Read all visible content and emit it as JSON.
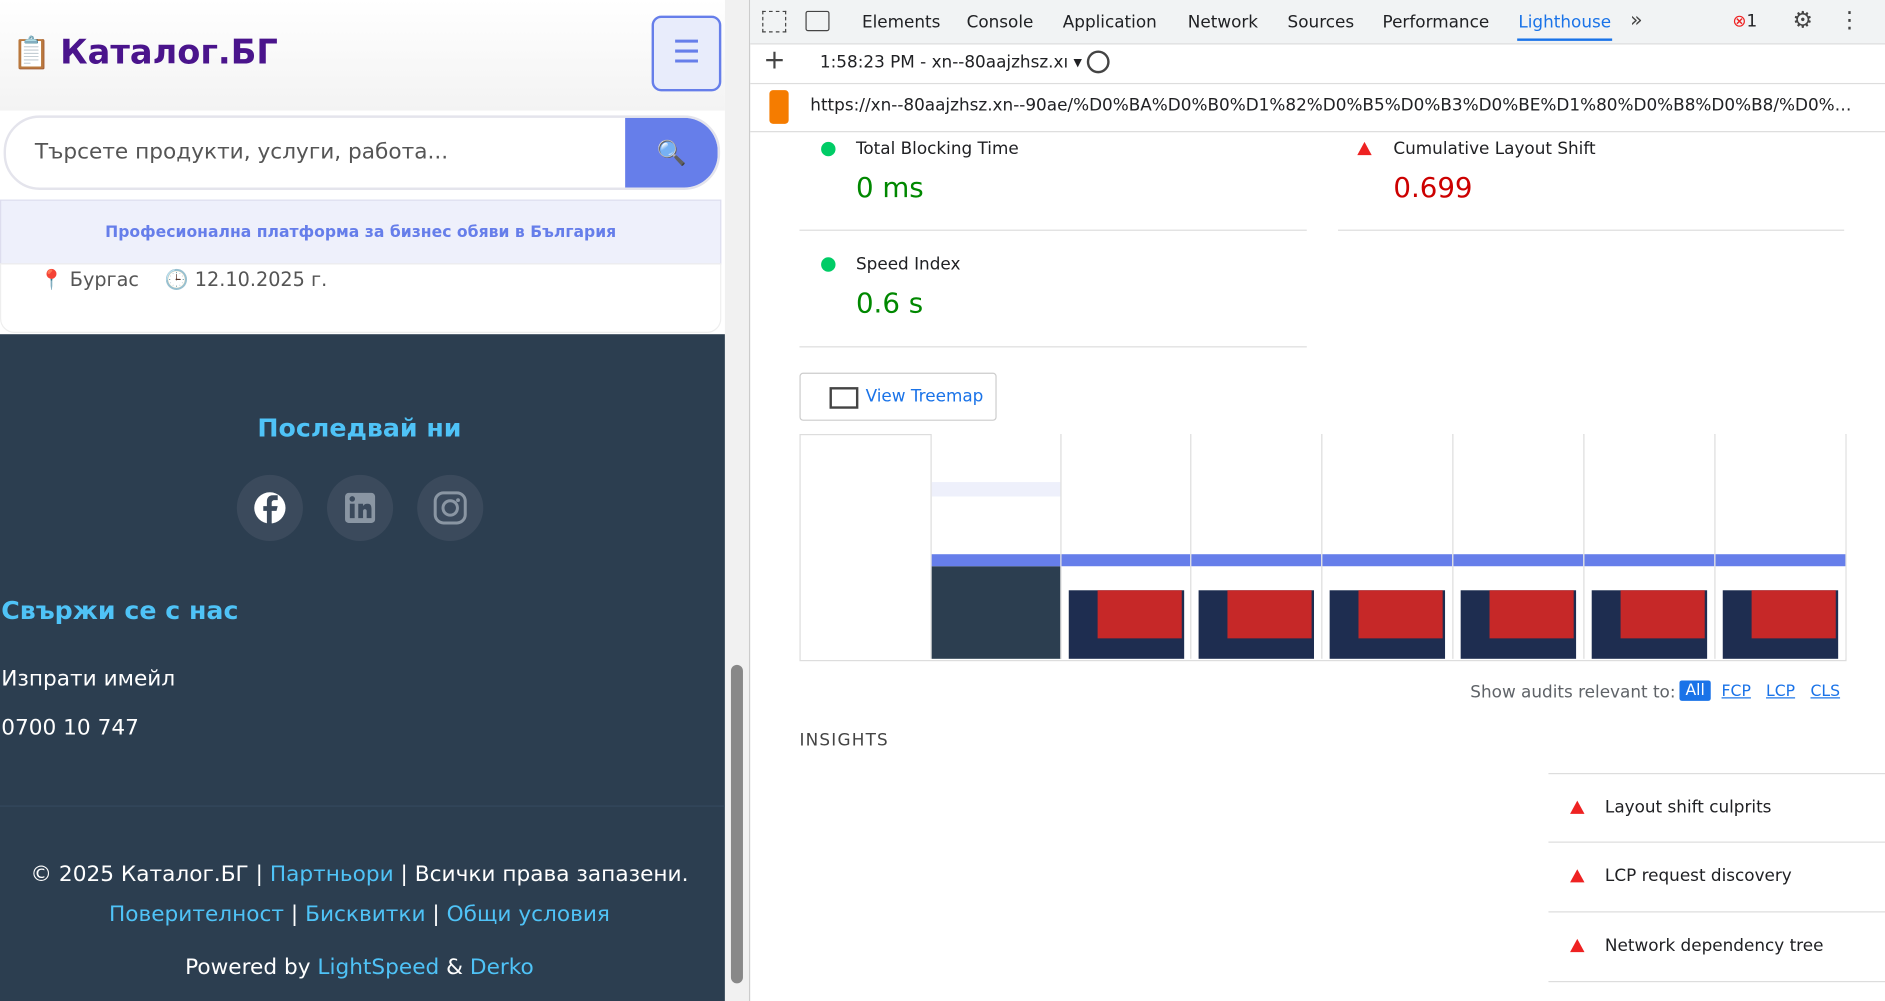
{
  "site": {
    "brand": "Каталог.БГ",
    "search_placeholder": "Търсете продукти, услуги, работа...",
    "tagline": "Професионална платформа за бизнес обяви в България",
    "listing": {
      "location": "Бургас",
      "date": "12.10.2025 г."
    },
    "follow_title": "Последвай ни",
    "contact": {
      "title": "Свържи се с нас",
      "items": [
        "Изпрати имейл",
        "0700 10 747"
      ]
    },
    "footer": {
      "copyright": "© 2025 Каталог.БГ",
      "separator": "|",
      "partners": "Партньори",
      "rights": "Всички права запазени.",
      "links": [
        "Поверителност",
        "Бисквитки",
        "Общи условия"
      ],
      "powered": "Powered by",
      "powered_links": [
        "LightSpeed",
        "Derko"
      ],
      "amp": "&"
    }
  },
  "devtools": {
    "tabs": [
      "Elements",
      "Console",
      "Application",
      "Network",
      "Sources",
      "Performance",
      "Lighthouse"
    ],
    "errors": "1",
    "report_time": "1:58:23 PM - xn--80aajzhsz.xı",
    "url": "https://xn--80aajzhsz.xn--90ae/%D0%BA%D0%B0%D1%82%D0%B5%D0%B3%D0%BE%D1%80%D0%B8%D0%B8/%D0%B0%D0%B0%D0%...",
    "metrics": [
      {
        "name": "Total Blocking Time",
        "value": "0 ms"
      },
      {
        "name": "Cumulative Layout Shift",
        "value": "0.699"
      },
      {
        "name": "Speed Index",
        "value": "0.6 s"
      }
    ],
    "treemap": "View Treemap",
    "filter_label": "Show audits relevant to:",
    "filters": [
      "All",
      "FCP",
      "LCP",
      "CLS"
    ],
    "insights_title": "INSIGHTS",
    "insights": [
      "Layout shift culprits",
      "LCP request discovery",
      "Network dependency tree"
    ]
  }
}
